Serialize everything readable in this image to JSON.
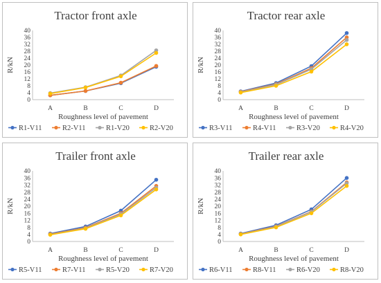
{
  "colors": {
    "blue": "#4472c4",
    "orange": "#ed7d31",
    "gray": "#a5a5a5",
    "yellow": "#ffc000"
  },
  "chart_data": [
    {
      "type": "line",
      "title": "Tractor front axle",
      "xlabel": "Roughness level  of pavement",
      "ylabel": "R/kN",
      "categories": [
        "A",
        "B",
        "C",
        "D"
      ],
      "ylim": [
        0,
        40
      ],
      "yticks": [
        "0",
        "4",
        "8",
        "12",
        "16",
        "20",
        "24",
        "28",
        "32",
        "36",
        "40"
      ],
      "grid": false,
      "legend": "bottom",
      "series": [
        {
          "name": "R1-V11",
          "color": "#4472c4",
          "values": [
            2.5,
            5.0,
            9.5,
            19.0
          ]
        },
        {
          "name": "R2-V11",
          "color": "#ed7d31",
          "values": [
            2.5,
            5.0,
            9.8,
            19.5
          ]
        },
        {
          "name": "R1-V20",
          "color": "#a5a5a5",
          "values": [
            3.8,
            7.2,
            14.0,
            28.5
          ]
        },
        {
          "name": "R2-V20",
          "color": "#ffc000",
          "values": [
            3.5,
            7.0,
            13.5,
            27.0
          ]
        }
      ]
    },
    {
      "type": "line",
      "title": "Tractor rear axle",
      "xlabel": "Roughness level  of pavement",
      "ylabel": "R/kN",
      "categories": [
        "A",
        "B",
        "C",
        "D"
      ],
      "ylim": [
        0,
        40
      ],
      "yticks": [
        "0",
        "4",
        "8",
        "12",
        "16",
        "20",
        "24",
        "28",
        "32",
        "36",
        "40"
      ],
      "grid": false,
      "legend": "bottom",
      "series": [
        {
          "name": "R3-V11",
          "color": "#4472c4",
          "values": [
            4.8,
            9.6,
            19.4,
            38.5
          ]
        },
        {
          "name": "R4-V11",
          "color": "#ed7d31",
          "values": [
            4.6,
            9.0,
            18.2,
            36.0
          ]
        },
        {
          "name": "R3-V20",
          "color": "#a5a5a5",
          "values": [
            4.4,
            8.7,
            17.6,
            34.5
          ]
        },
        {
          "name": "R4-V20",
          "color": "#ffc000",
          "values": [
            4.1,
            8.0,
            16.2,
            32.0
          ]
        }
      ]
    },
    {
      "type": "line",
      "title": "Trailer front axle",
      "xlabel": "Roughness level  of pavement",
      "ylabel": "R/kN",
      "categories": [
        "A",
        "B",
        "C",
        "D"
      ],
      "ylim": [
        0,
        40
      ],
      "yticks": [
        "0",
        "4",
        "8",
        "12",
        "16",
        "20",
        "24",
        "28",
        "32",
        "36",
        "40"
      ],
      "grid": false,
      "legend": "bottom",
      "series": [
        {
          "name": "R5-V11",
          "color": "#4472c4",
          "values": [
            4.5,
            8.5,
            17.5,
            35.0
          ]
        },
        {
          "name": "R7-V11",
          "color": "#ed7d31",
          "values": [
            4.2,
            7.8,
            16.0,
            31.5
          ]
        },
        {
          "name": "R5-V20",
          "color": "#a5a5a5",
          "values": [
            4.0,
            7.5,
            15.5,
            30.5
          ]
        },
        {
          "name": "R7-V20",
          "color": "#ffc000",
          "values": [
            3.8,
            7.2,
            14.8,
            29.5
          ]
        }
      ]
    },
    {
      "type": "line",
      "title": "Trailer rear axle",
      "xlabel": "Roughness level  of pavement",
      "ylabel": "R/kN",
      "categories": [
        "A",
        "B",
        "C",
        "D"
      ],
      "ylim": [
        0,
        40
      ],
      "yticks": [
        "0",
        "4",
        "8",
        "12",
        "16",
        "20",
        "24",
        "28",
        "32",
        "36",
        "40"
      ],
      "grid": false,
      "legend": "bottom",
      "series": [
        {
          "name": "R6-V11",
          "color": "#4472c4",
          "values": [
            4.5,
            9.2,
            18.2,
            36.0
          ]
        },
        {
          "name": "R8-V11",
          "color": "#ed7d31",
          "values": [
            4.3,
            8.6,
            17.0,
            33.5
          ]
        },
        {
          "name": "R6-V20",
          "color": "#a5a5a5",
          "values": [
            4.2,
            8.4,
            16.8,
            33.0
          ]
        },
        {
          "name": "R8-V20",
          "color": "#ffc000",
          "values": [
            4.0,
            8.0,
            16.0,
            31.5
          ]
        }
      ]
    }
  ]
}
